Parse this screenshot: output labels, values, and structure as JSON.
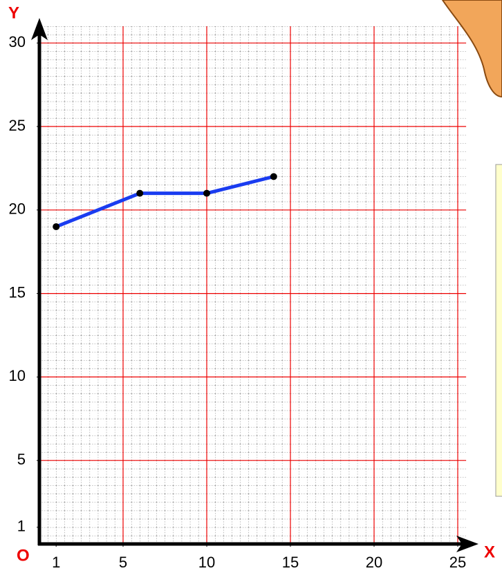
{
  "chart_data": {
    "type": "line",
    "x_label": "X",
    "y_label": "Y",
    "origin_label": "O",
    "x": [
      1,
      6,
      10,
      14
    ],
    "series": [
      {
        "color": "#1a3cf0",
        "values": [
          19,
          21,
          21,
          22
        ]
      }
    ],
    "xlim": [
      0,
      25.5
    ],
    "ylim": [
      0,
      31
    ],
    "xticks": [
      1,
      5,
      10,
      15,
      20,
      25
    ],
    "yticks": [
      1,
      5,
      10,
      15,
      20,
      25,
      30
    ],
    "grid": true
  }
}
